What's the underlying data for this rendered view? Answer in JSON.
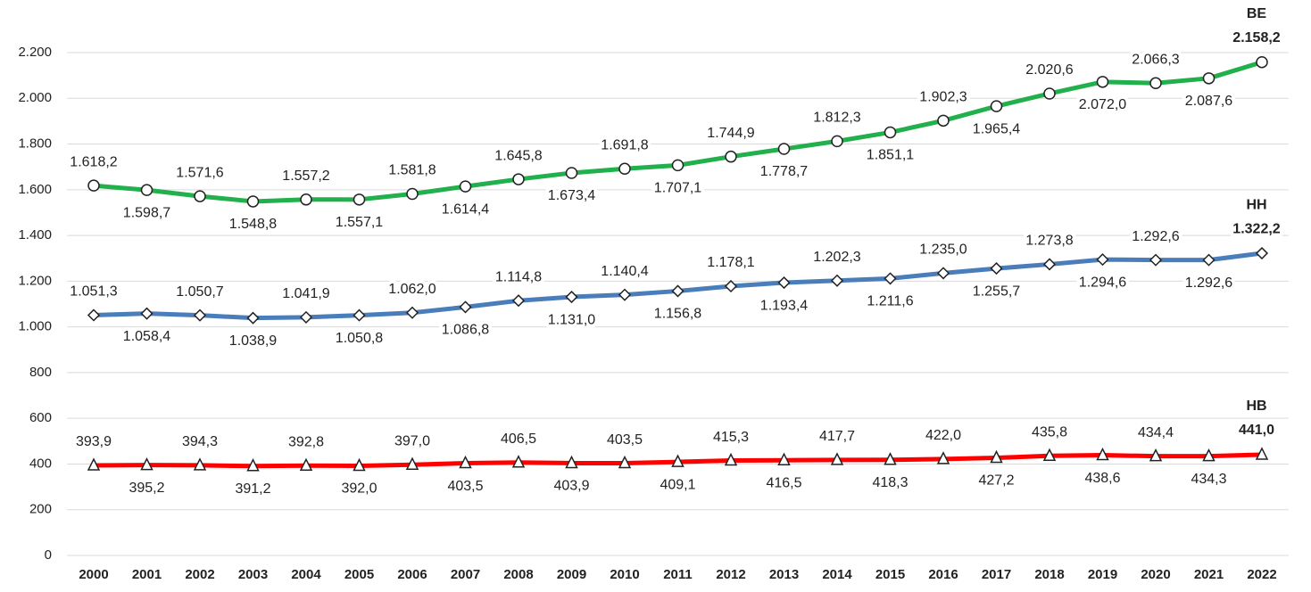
{
  "chart_data": {
    "type": "line",
    "categories": [
      "2000",
      "2001",
      "2002",
      "2003",
      "2004",
      "2005",
      "2006",
      "2007",
      "2008",
      "2009",
      "2010",
      "2011",
      "2012",
      "2013",
      "2014",
      "2015",
      "2016",
      "2017",
      "2018",
      "2019",
      "2020",
      "2021",
      "2022"
    ],
    "ylim": [
      0,
      2200
    ],
    "yticks": [
      0,
      200,
      400,
      600,
      800,
      {
        "value": 1000,
        "label": "1.000"
      },
      {
        "value": 1200,
        "label": "1.200"
      },
      {
        "value": 1400,
        "label": "1.400"
      },
      {
        "value": 1600,
        "label": "1.600"
      },
      {
        "value": 1800,
        "label": "1.800"
      },
      {
        "value": 2000,
        "label": "2.000"
      },
      {
        "value": 2200,
        "label": "2.200"
      }
    ],
    "grid": true,
    "series": [
      {
        "name": "BE",
        "color": "#21b04b",
        "marker": "circle",
        "values": [
          1618.2,
          1598.7,
          1571.6,
          1548.8,
          1557.2,
          1557.1,
          1581.8,
          1614.4,
          1645.8,
          1673.4,
          1691.8,
          1707.1,
          1744.9,
          1778.7,
          1812.3,
          1851.1,
          1902.3,
          1965.4,
          2020.6,
          2072.0,
          2066.3,
          2087.6,
          2158.2
        ],
        "value_labels": [
          "1.618,2",
          "1.598,7",
          "1.571,6",
          "1.548,8",
          "1.557,2",
          "1.557,1",
          "1.581,8",
          "1.614,4",
          "1.645,8",
          "1.673,4",
          "1.691,8",
          "1.707,1",
          "1.744,9",
          "1.778,7",
          "1.812,3",
          "1.851,1",
          "1.902,3",
          "1.965,4",
          "2.020,6",
          "2.072,0",
          "2.066,3",
          "2.087,6",
          "2.158,2"
        ]
      },
      {
        "name": "HH",
        "color": "#4a7ebb",
        "marker": "diamond",
        "values": [
          1051.3,
          1058.4,
          1050.7,
          1038.9,
          1041.9,
          1050.8,
          1062.0,
          1086.8,
          1114.8,
          1131.0,
          1140.4,
          1156.8,
          1178.1,
          1193.4,
          1202.3,
          1211.6,
          1235.0,
          1255.7,
          1273.8,
          1294.6,
          1292.6,
          1292.6,
          1322.2
        ],
        "value_labels": [
          "1.051,3",
          "1.058,4",
          "1.050,7",
          "1.038,9",
          "1.041,9",
          "1.050,8",
          "1.062,0",
          "1.086,8",
          "1.114,8",
          "1.131,0",
          "1.140,4",
          "1.156,8",
          "1.178,1",
          "1.193,4",
          "1.202,3",
          "1.211,6",
          "1.235,0",
          "1.255,7",
          "1.273,8",
          "1.294,6",
          "1.292,6",
          "1.292,6",
          "1.322,2"
        ]
      },
      {
        "name": "HB",
        "color": "#ff0000",
        "marker": "triangle",
        "values": [
          393.9,
          395.2,
          394.3,
          391.2,
          392.8,
          392.0,
          397.0,
          403.5,
          406.5,
          403.9,
          403.5,
          409.1,
          415.3,
          416.5,
          417.7,
          418.3,
          422.0,
          427.2,
          435.8,
          438.6,
          434.4,
          434.3,
          441.0
        ],
        "value_labels": [
          "393,9",
          "395,2",
          "394,3",
          "391,2",
          "392,8",
          "392,0",
          "397,0",
          "403,5",
          "406,5",
          "403,9",
          "403,5",
          "409,1",
          "415,3",
          "416,5",
          "417,7",
          "418,3",
          "422,0",
          "427,2",
          "435,8",
          "438,6",
          "434,4",
          "434,3",
          "441,0"
        ]
      }
    ]
  }
}
